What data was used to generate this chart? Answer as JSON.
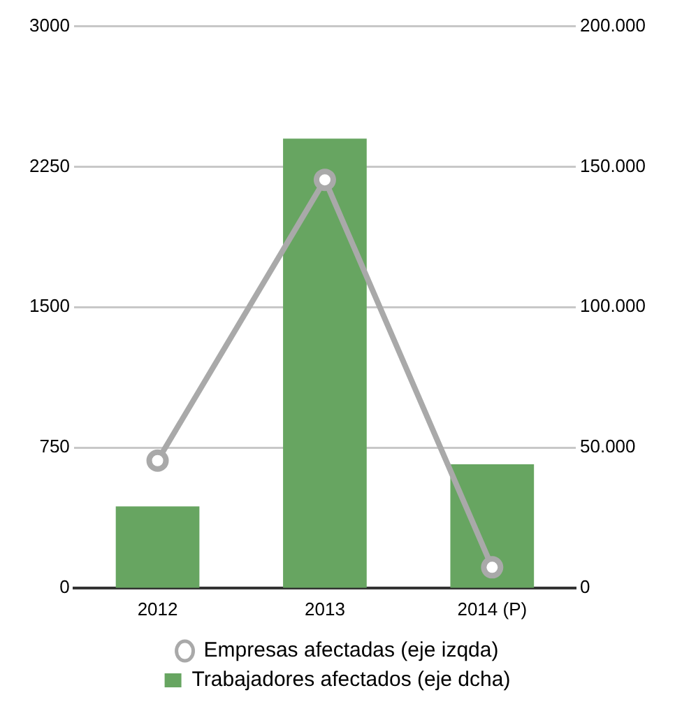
{
  "chart_data": {
    "type": "bar",
    "categories": [
      "2012",
      "2013",
      "2014 (P)"
    ],
    "series": [
      {
        "name": "Empresas afectadas (eje izqda)",
        "type": "line",
        "color": "#a9a9a9",
        "values": [
          680,
          2180,
          110
        ]
      },
      {
        "name": "Trabajadores afectados (eje dcha)",
        "color": "#67a561",
        "axis": "y2",
        "values": [
          29000,
          160000,
          44000
        ]
      }
    ],
    "ylim": [
      0,
      3000
    ],
    "yticks": [
      0,
      750,
      1500,
      2250,
      3000
    ],
    "y2lim": [
      0,
      200000
    ],
    "y2ticks": [
      {
        "value": 0,
        "label": "0"
      },
      {
        "value": 50000,
        "label": "50.000"
      },
      {
        "value": 100000,
        "label": "100.000"
      },
      {
        "value": 150000,
        "label": "150.000"
      },
      {
        "value": 200000,
        "label": "200.000"
      }
    ],
    "grid": "y",
    "legend": "bottom",
    "marker": "circle",
    "line_style": "solid"
  }
}
